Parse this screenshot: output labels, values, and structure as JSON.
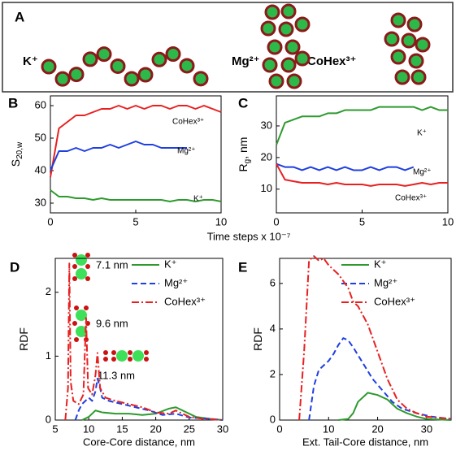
{
  "figure": {
    "panel": "A",
    "labels": [
      "K⁺",
      "Mg²⁺",
      "CoHex³⁺"
    ],
    "xlabel": "Time steps x 10⁻⁷"
  },
  "chart_data": [
    {
      "type": "line",
      "panel": "B",
      "ylabel": "S",
      "ylabel_sub": "20,w",
      "x": [
        0,
        0.5,
        1,
        1.5,
        2,
        2.5,
        3,
        3.5,
        4,
        4.5,
        5,
        5.5,
        6,
        6.5,
        7,
        7.5,
        8,
        8.5,
        9,
        9.5,
        10
      ],
      "xlim": [
        0,
        10
      ],
      "xticks": [
        0,
        5,
        10
      ],
      "ylim": [
        27,
        63
      ],
      "yticks": [
        30,
        40,
        50,
        60
      ],
      "series": [
        {
          "name": "CoHex³⁺",
          "color": "#e82020",
          "linestyle": "solid",
          "values": [
            38,
            53,
            55,
            57,
            57,
            58,
            59,
            59,
            60,
            59,
            60,
            59,
            60,
            60,
            59,
            60,
            60,
            59,
            60,
            59,
            58
          ]
        },
        {
          "name": "Mg²⁺",
          "color": "#1f3fe0",
          "linestyle": "solid",
          "values": [
            40,
            46,
            46,
            47,
            46,
            47,
            47,
            48,
            47,
            48,
            49,
            48,
            48,
            47,
            47,
            47,
            47,
            null,
            null,
            null,
            null
          ]
        },
        {
          "name": "K⁺",
          "color": "#2e9a2e",
          "linestyle": "solid",
          "values": [
            34,
            32,
            32,
            31.5,
            31.5,
            31,
            31.5,
            31,
            31,
            31,
            31,
            31,
            31,
            31,
            30.5,
            31,
            31,
            30.5,
            31,
            31,
            30.5
          ]
        }
      ]
    },
    {
      "type": "line",
      "panel": "C",
      "ylabel": "R",
      "ylabel_sub": "g",
      "ylabel_rest": ", nm",
      "x": [
        0,
        0.5,
        1,
        1.5,
        2,
        2.5,
        3,
        3.5,
        4,
        4.5,
        5,
        5.5,
        6,
        6.5,
        7,
        7.5,
        8,
        8.5,
        9,
        9.5,
        10
      ],
      "xlim": [
        0,
        10
      ],
      "xticks": [
        0,
        5,
        10
      ],
      "ylim": [
        2.5,
        39.5
      ],
      "yticks": [
        10,
        20,
        30
      ],
      "series": [
        {
          "name": "K⁺",
          "color": "#2e9a2e",
          "linestyle": "solid",
          "values": [
            24,
            31,
            32,
            33,
            33,
            33,
            34,
            34,
            35,
            35,
            35,
            35,
            36,
            36,
            36,
            36,
            36,
            35,
            36,
            35,
            35
          ]
        },
        {
          "name": "Mg²⁺",
          "color": "#1f3fe0",
          "linestyle": "solid",
          "values": [
            18,
            17,
            17,
            16,
            17,
            16,
            17,
            16,
            17,
            16,
            16,
            17,
            16,
            17,
            17,
            16,
            17,
            null,
            null,
            null,
            null
          ]
        },
        {
          "name": "CoHex³⁺",
          "color": "#e82020",
          "linestyle": "solid",
          "values": [
            18,
            13,
            12.5,
            12,
            12,
            12,
            11.5,
            12,
            11.5,
            11.5,
            11.5,
            11,
            11.5,
            11.5,
            11.5,
            11,
            11.5,
            12,
            11.5,
            12,
            12
          ]
        }
      ]
    },
    {
      "type": "line",
      "panel": "D",
      "xlabel": "Core-Core distance, nm",
      "ylabel": "RDF",
      "xlim": [
        5,
        30
      ],
      "xticks": [
        5,
        10,
        15,
        20,
        25,
        30
      ],
      "ylim": [
        0,
        2.53
      ],
      "yticks": [
        0,
        1,
        2
      ],
      "legend": true,
      "annotations": [
        "7.1 nm",
        "9.6 nm",
        "11.3 nm"
      ],
      "series": [
        {
          "name": "K⁺",
          "color": "#2e9a2e",
          "linestyle": "solid",
          "x": [
            9,
            10,
            11,
            12,
            14,
            16,
            18,
            20,
            22,
            23,
            24,
            26,
            28,
            30
          ],
          "values": [
            0,
            0.05,
            0.15,
            0.12,
            0.1,
            0.1,
            0.08,
            0.1,
            0.18,
            0.2,
            0.15,
            0.05,
            0.02,
            0
          ]
        },
        {
          "name": "Mg²⁺",
          "color": "#1f3fe0",
          "linestyle": "dashed",
          "x": [
            8,
            8.5,
            9,
            9.5,
            10,
            10.5,
            11,
            11.3,
            11.7,
            12,
            13,
            15,
            17,
            19,
            21,
            23,
            25,
            28,
            30
          ],
          "values": [
            0,
            0.15,
            0.25,
            0.3,
            0.35,
            0.3,
            0.45,
            0.65,
            0.5,
            0.35,
            0.3,
            0.25,
            0.2,
            0.15,
            0.08,
            0.1,
            0.04,
            0.02,
            0
          ]
        },
        {
          "name": "CoHex³⁺",
          "color": "#e82020",
          "linestyle": "dashdot",
          "x": [
            6.5,
            6.9,
            7.1,
            7.3,
            7.7,
            8.5,
            9.2,
            9.6,
            9.9,
            10.5,
            11,
            11.3,
            11.7,
            12.5,
            14,
            16,
            18,
            20,
            22,
            23,
            25,
            27,
            30
          ],
          "values": [
            0,
            0.5,
            2.45,
            0.6,
            0.3,
            0.25,
            0.4,
            1.6,
            0.5,
            0.4,
            0.7,
            1.05,
            0.5,
            0.35,
            0.3,
            0.25,
            0.2,
            0.12,
            0.1,
            0.15,
            0.05,
            0.02,
            0
          ]
        }
      ]
    },
    {
      "type": "line",
      "panel": "E",
      "xlabel": "Ext. Tail-Core distance, nm",
      "ylabel": "RDF",
      "xlim": [
        0,
        35
      ],
      "xticks": [
        0,
        10,
        20,
        30
      ],
      "ylim": [
        0,
        7.1
      ],
      "yticks": [
        0,
        2,
        4,
        6
      ],
      "legend": true,
      "series": [
        {
          "name": "K⁺",
          "color": "#2e9a2e",
          "linestyle": "solid",
          "x": [
            12,
            14,
            15,
            16,
            17,
            18,
            20,
            22,
            24,
            26,
            28,
            30,
            35
          ],
          "values": [
            0,
            0.05,
            0.3,
            0.8,
            1.0,
            1.2,
            1.1,
            0.9,
            0.5,
            0.3,
            0.15,
            0.05,
            0
          ]
        },
        {
          "name": "Mg²⁺",
          "color": "#1f3fe0",
          "linestyle": "dashed",
          "x": [
            6,
            7,
            8,
            10,
            11,
            12,
            13,
            14,
            15,
            17,
            19,
            21,
            23,
            25,
            28,
            31,
            35
          ],
          "values": [
            0,
            1.5,
            2.2,
            2.6,
            2.9,
            3.3,
            3.6,
            3.5,
            3.2,
            2.5,
            1.8,
            1.3,
            0.8,
            0.5,
            0.3,
            0.15,
            0.05
          ]
        },
        {
          "name": "CoHex³⁺",
          "color": "#e82020",
          "linestyle": "dashdot",
          "x": [
            4,
            5,
            6,
            7,
            8,
            9,
            10,
            12,
            14,
            15,
            16,
            18,
            20,
            22,
            24,
            26,
            28,
            30,
            35
          ],
          "values": [
            0,
            3,
            7,
            7.2,
            7,
            7.1,
            6.8,
            6.4,
            5.8,
            5.2,
            5,
            4.2,
            3,
            1.8,
            0.9,
            0.5,
            0.3,
            0.15,
            0.05
          ]
        }
      ]
    }
  ]
}
